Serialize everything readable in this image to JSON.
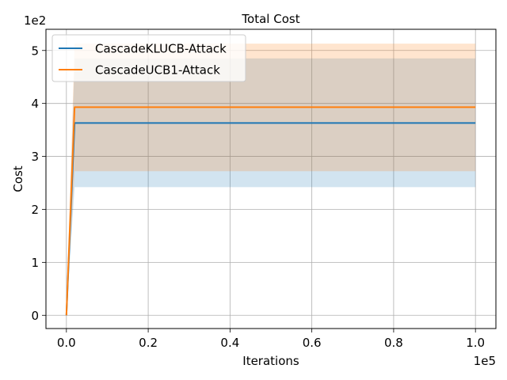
{
  "chart_data": {
    "type": "line",
    "title": "Total Cost",
    "xlabel": "Iterations",
    "ylabel": "Cost",
    "x_offset_label": "1e5",
    "y_offset_label": "1e2",
    "xlim": [
      -0.05,
      1.05
    ],
    "ylim": [
      -0.25,
      5.4
    ],
    "x_ticks": [
      0.0,
      0.2,
      0.4,
      0.6,
      0.8,
      1.0
    ],
    "x_tick_labels": [
      "0.0",
      "0.2",
      "0.4",
      "0.6",
      "0.8",
      "1.0"
    ],
    "y_ticks": [
      0,
      1,
      2,
      3,
      4,
      5
    ],
    "y_tick_labels": [
      "0",
      "1",
      "2",
      "3",
      "4",
      "5"
    ],
    "grid": true,
    "legend_position": "upper-left",
    "series": [
      {
        "name": "CascadeKLUCB-Attack",
        "color": "#1f77b4",
        "band_color": "#1f77b4",
        "x": [
          0.0,
          0.02,
          1.0
        ],
        "y": [
          0.0,
          3.63,
          3.63
        ],
        "band_low": [
          0.0,
          2.42,
          2.42
        ],
        "band_high": [
          0.0,
          4.85,
          4.85
        ]
      },
      {
        "name": "CascadeUCB1-Attack",
        "color": "#ff7f0e",
        "band_color": "#ff7f0e",
        "x": [
          0.0,
          0.02,
          1.0
        ],
        "y": [
          0.0,
          3.93,
          3.93
        ],
        "band_low": [
          0.0,
          2.72,
          2.72
        ],
        "band_high": [
          0.0,
          5.13,
          5.13
        ]
      }
    ]
  }
}
